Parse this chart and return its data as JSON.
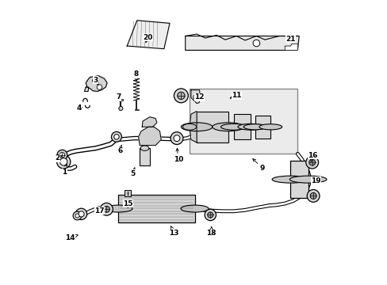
{
  "bg_color": "#ffffff",
  "line_color": "#000000",
  "figsize": [
    4.89,
    3.6
  ],
  "dpi": 100,
  "labels": {
    "1": {
      "lpos": [
        0.045,
        0.395
      ],
      "apos": [
        0.055,
        0.435
      ]
    },
    "2": {
      "lpos": [
        0.02,
        0.445
      ],
      "apos": [
        0.038,
        0.455
      ]
    },
    "3": {
      "lpos": [
        0.155,
        0.72
      ],
      "apos": [
        0.165,
        0.7
      ]
    },
    "4": {
      "lpos": [
        0.095,
        0.62
      ],
      "apos": [
        0.108,
        0.625
      ]
    },
    "5": {
      "lpos": [
        0.285,
        0.39
      ],
      "apos": [
        0.295,
        0.42
      ]
    },
    "6": {
      "lpos": [
        0.24,
        0.47
      ],
      "apos": [
        0.248,
        0.5
      ]
    },
    "7": {
      "lpos": [
        0.235,
        0.66
      ],
      "apos": [
        0.243,
        0.64
      ]
    },
    "8": {
      "lpos": [
        0.298,
        0.74
      ],
      "apos": [
        0.298,
        0.715
      ]
    },
    "9": {
      "lpos": [
        0.74,
        0.41
      ],
      "apos": [
        0.7,
        0.45
      ]
    },
    "10": {
      "lpos": [
        0.445,
        0.44
      ],
      "apos": [
        0.44,
        0.49
      ]
    },
    "11": {
      "lpos": [
        0.65,
        0.665
      ],
      "apos": [
        0.625,
        0.655
      ]
    },
    "12": {
      "lpos": [
        0.52,
        0.66
      ],
      "apos": [
        0.532,
        0.655
      ]
    },
    "13": {
      "lpos": [
        0.43,
        0.18
      ],
      "apos": [
        0.415,
        0.215
      ]
    },
    "14": {
      "lpos": [
        0.065,
        0.165
      ],
      "apos": [
        0.095,
        0.175
      ]
    },
    "15": {
      "lpos": [
        0.268,
        0.285
      ],
      "apos": [
        0.268,
        0.268
      ]
    },
    "16": {
      "lpos": [
        0.918,
        0.455
      ],
      "apos": [
        0.912,
        0.43
      ]
    },
    "17": {
      "lpos": [
        0.168,
        0.26
      ],
      "apos": [
        0.183,
        0.258
      ]
    },
    "18": {
      "lpos": [
        0.562,
        0.18
      ],
      "apos": [
        0.562,
        0.213
      ]
    },
    "19": {
      "lpos": [
        0.93,
        0.365
      ],
      "apos": [
        0.924,
        0.385
      ]
    },
    "20": {
      "lpos": [
        0.338,
        0.87
      ],
      "apos": [
        0.33,
        0.85
      ]
    },
    "21": {
      "lpos": [
        0.84,
        0.865
      ],
      "apos": [
        0.83,
        0.855
      ]
    }
  }
}
